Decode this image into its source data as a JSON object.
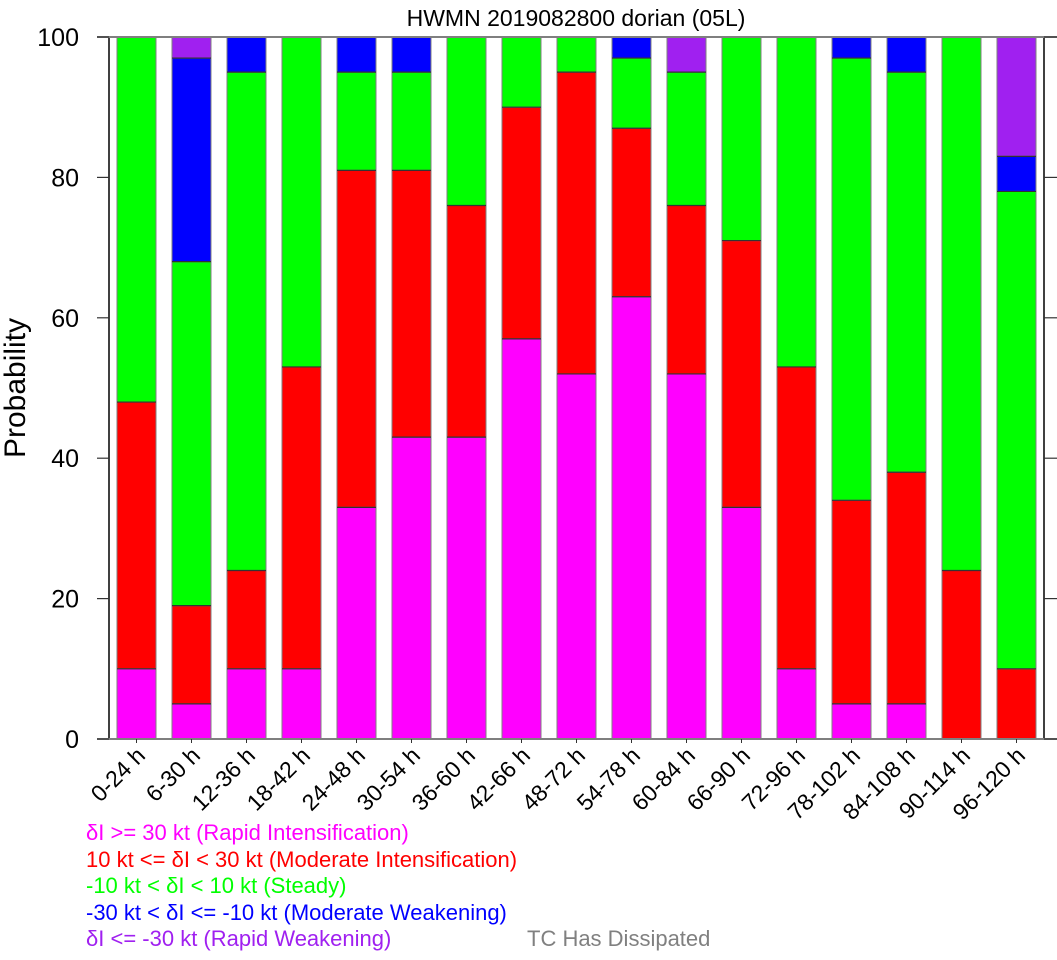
{
  "chart_data": {
    "type": "bar",
    "stacked": true,
    "title": "HWMN 2019082800 dorian (05L)",
    "xlabel": "",
    "ylabel": "Probability",
    "ylim": [
      0,
      100
    ],
    "yticks": [
      0,
      20,
      40,
      60,
      80,
      100
    ],
    "grid": false,
    "legend_position": "bottom-left",
    "categories": [
      "0-24 h",
      "6-30 h",
      "12-36 h",
      "18-42 h",
      "24-48 h",
      "30-54 h",
      "36-60 h",
      "42-66 h",
      "48-72 h",
      "54-78 h",
      "60-84 h",
      "66-90 h",
      "72-96 h",
      "78-102 h",
      "84-108 h",
      "90-114 h",
      "96-120 h"
    ],
    "series": [
      {
        "name": "δI >= 30 kt (Rapid Intensification)",
        "color": "#ff00ff",
        "values": [
          10,
          5,
          10,
          10,
          33,
          43,
          43,
          57,
          52,
          63,
          52,
          33,
          10,
          5,
          5,
          0,
          0
        ]
      },
      {
        "name": "10 kt <= δI < 30 kt (Moderate Intensification)",
        "color": "#ff0000",
        "values": [
          38,
          14,
          14,
          43,
          48,
          38,
          33,
          33,
          43,
          24,
          24,
          38,
          43,
          29,
          33,
          24,
          10
        ]
      },
      {
        "name": "-10 kt < δI < 10 kt (Steady)",
        "color": "#00ff00",
        "values": [
          52,
          49,
          71,
          47,
          14,
          14,
          24,
          10,
          5,
          10,
          19,
          29,
          47,
          63,
          57,
          76,
          68
        ]
      },
      {
        "name": "-30 kt < δI <= -10 kt (Moderate Weakening)",
        "color": "#0000ff",
        "values": [
          0,
          29,
          5,
          0,
          5,
          5,
          0,
          0,
          0,
          3,
          0,
          0,
          0,
          3,
          5,
          0,
          5
        ]
      },
      {
        "name": "δI <= -30 kt (Rapid Weakening)",
        "color": "#a020f0",
        "values": [
          0,
          3,
          0,
          0,
          0,
          0,
          0,
          0,
          0,
          0,
          5,
          0,
          0,
          0,
          0,
          0,
          17
        ]
      }
    ],
    "annotations": [
      {
        "text": "TC Has Dissipated",
        "color": "#808080"
      }
    ]
  }
}
